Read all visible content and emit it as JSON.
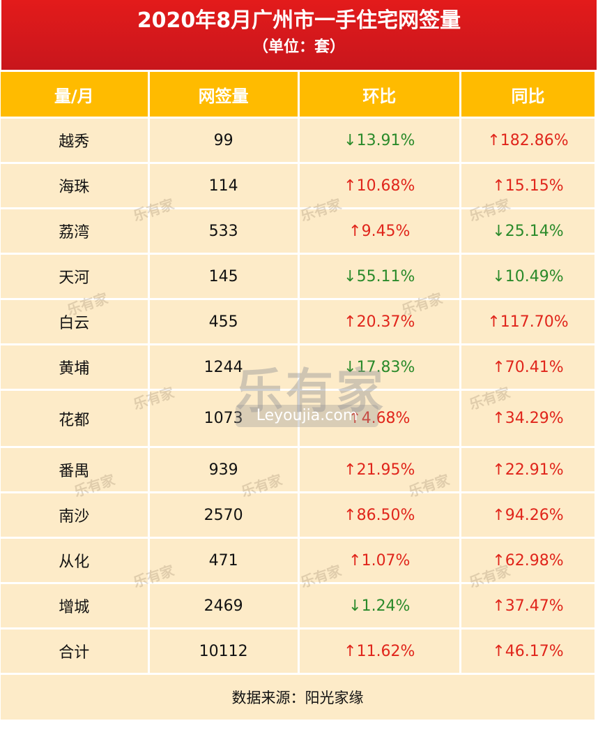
{
  "header": {
    "title": "2020年8月广州市一手住宅网签量",
    "subtitle": "（单位：套）"
  },
  "columns": [
    "量/月",
    "网签量",
    "环比",
    "同比"
  ],
  "rows": [
    {
      "district": "越秀",
      "count": "99",
      "mom": "↓13.91%",
      "mom_dir": "down",
      "yoy": "↑182.86%",
      "yoy_dir": "up"
    },
    {
      "district": "海珠",
      "count": "114",
      "mom": "↑10.68%",
      "mom_dir": "up",
      "yoy": "↑15.15%",
      "yoy_dir": "up"
    },
    {
      "district": "荔湾",
      "count": "533",
      "mom": "↑9.45%",
      "mom_dir": "up",
      "yoy": "↓25.14%",
      "yoy_dir": "down"
    },
    {
      "district": "天河",
      "count": "145",
      "mom": "↓55.11%",
      "mom_dir": "down",
      "yoy": "↓10.49%",
      "yoy_dir": "down"
    },
    {
      "district": "白云",
      "count": "455",
      "mom": "↑20.37%",
      "mom_dir": "up",
      "yoy": "↑117.70%",
      "yoy_dir": "up"
    },
    {
      "district": "黄埔",
      "count": "1244",
      "mom": "↓17.83%",
      "mom_dir": "down",
      "yoy": "↑70.41%",
      "yoy_dir": "up"
    },
    {
      "district": "花都",
      "count": "1073",
      "mom": "↑4.68%",
      "mom_dir": "up",
      "yoy": "↑34.29%",
      "yoy_dir": "up"
    },
    {
      "district": "番禺",
      "count": "939",
      "mom": "↑21.95%",
      "mom_dir": "up",
      "yoy": "↑22.91%",
      "yoy_dir": "up"
    },
    {
      "district": "南沙",
      "count": "2570",
      "mom": "↑86.50%",
      "mom_dir": "up",
      "yoy": "↑94.26%",
      "yoy_dir": "up"
    },
    {
      "district": "从化",
      "count": "471",
      "mom": "↑1.07%",
      "mom_dir": "up",
      "yoy": "↑62.98%",
      "yoy_dir": "up"
    },
    {
      "district": "增城",
      "count": "2469",
      "mom": "↓1.24%",
      "mom_dir": "down",
      "yoy": "↑37.47%",
      "yoy_dir": "up"
    },
    {
      "district": "合计",
      "count": "10112",
      "mom": "↑11.62%",
      "mom_dir": "up",
      "yoy": "↑46.17%",
      "yoy_dir": "up"
    }
  ],
  "footer": "数据来源：阳光家缘",
  "watermark": {
    "brand": "乐有家",
    "url": "Leyoujia.com",
    "small": "乐有家"
  },
  "colors": {
    "title_bg": "#d7181c",
    "header_bg": "#ffbb00",
    "cell_bg": "#fdebc8",
    "up": "#e0251b",
    "down": "#2a8a2a"
  }
}
